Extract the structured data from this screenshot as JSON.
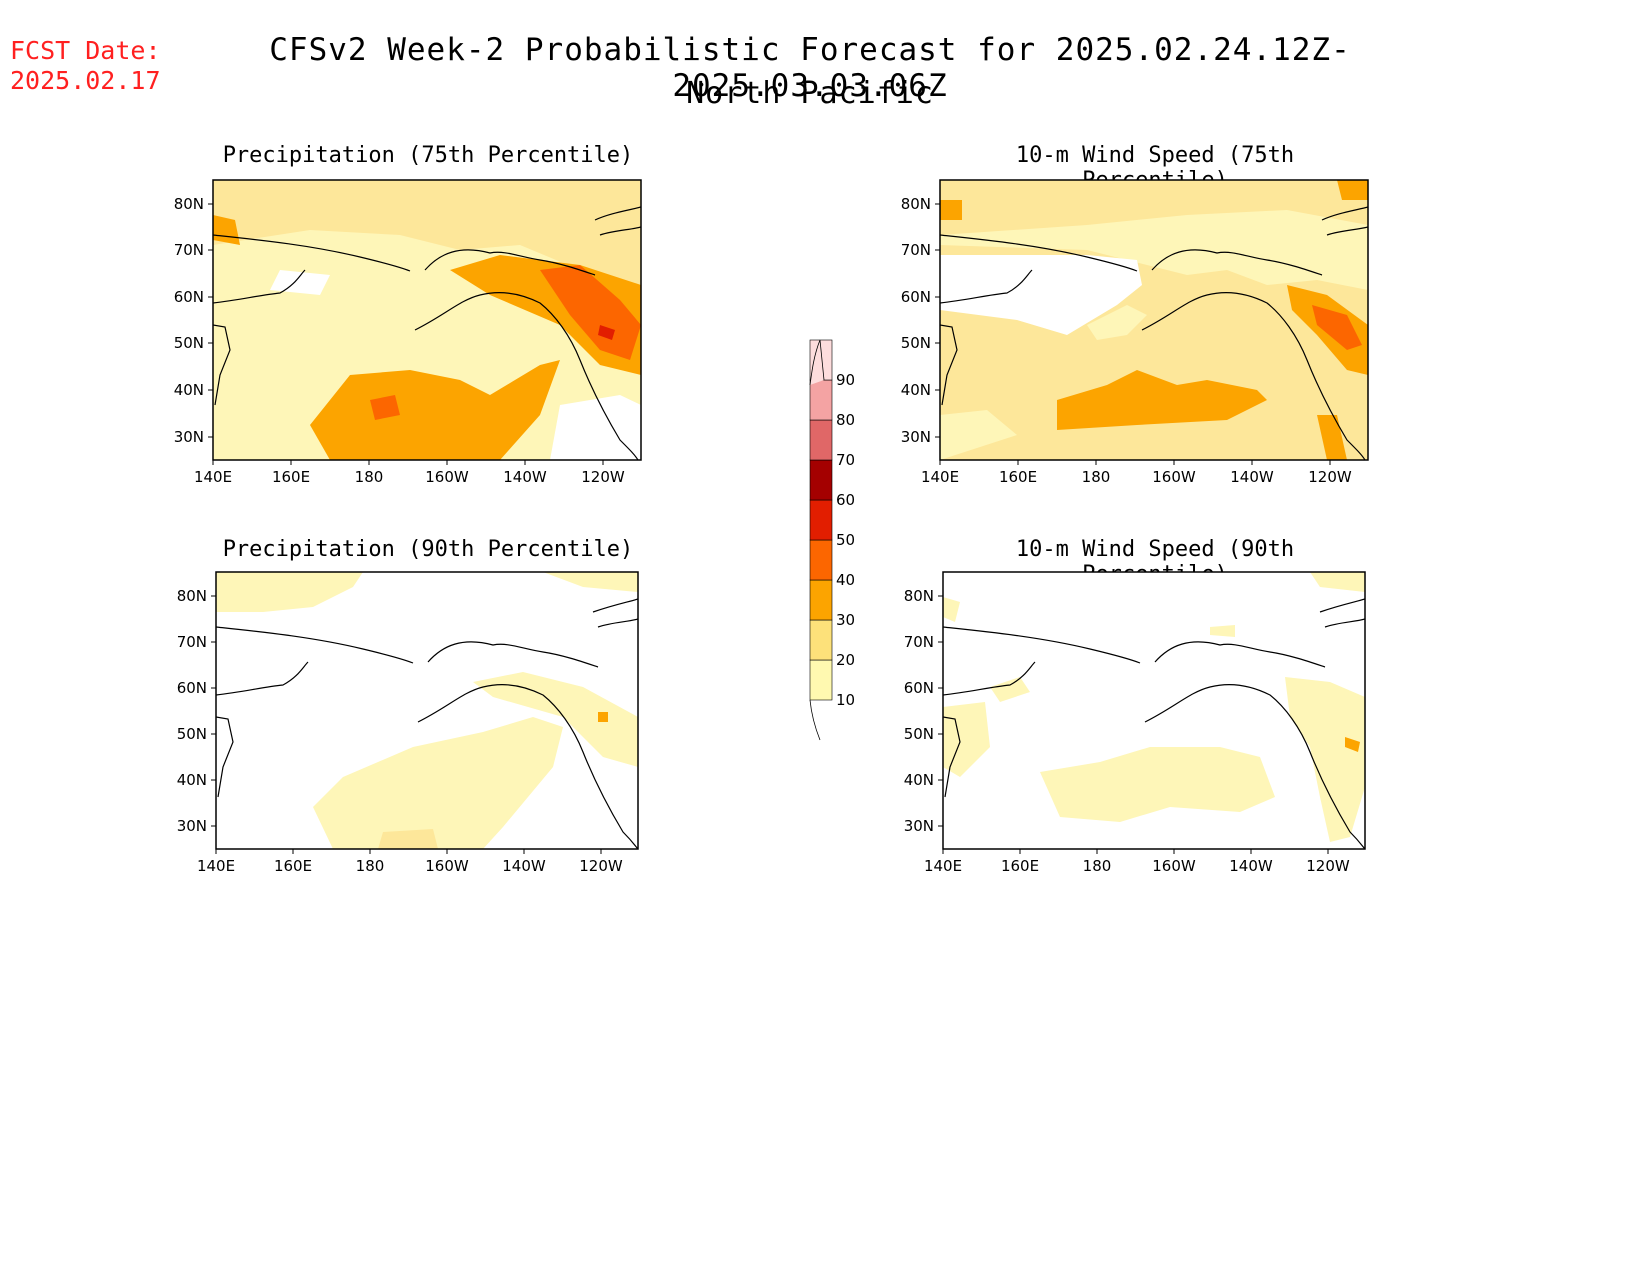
{
  "header": {
    "fcst_label": "FCST Date:",
    "fcst_date": "2025.02.17",
    "title": "CFSv2 Week-2 Probabilistic Forecast for 2025.02.24.12Z-2025.03.03.06Z",
    "subtitle": "North Pacific"
  },
  "panels": [
    {
      "title": "Precipitation (75th Percentile)"
    },
    {
      "title": "10-m Wind Speed (75th Percentile)"
    },
    {
      "title": "Precipitation (90th Percentile)"
    },
    {
      "title": "10-m Wind Speed (90th Percentile)"
    }
  ],
  "axes": {
    "lat_labels": [
      "80N",
      "70N",
      "60N",
      "50N",
      "40N",
      "30N"
    ],
    "lon_labels": [
      "140E",
      "160E",
      "180",
      "160W",
      "140W",
      "120W"
    ]
  },
  "colorbar": {
    "labels": [
      "10",
      "20",
      "30",
      "40",
      "50",
      "60",
      "70",
      "80",
      "90"
    ],
    "colors": [
      "#fff9b0",
      "#fde17a",
      "#fca400",
      "#fc6600",
      "#e21e00",
      "#a40000",
      "#e06767",
      "#f4a3a3",
      "#fddddd"
    ]
  },
  "map": {
    "extent": {
      "lon_min": 140,
      "lon_max": 250,
      "lat_min": 25,
      "lat_max": 85
    }
  }
}
